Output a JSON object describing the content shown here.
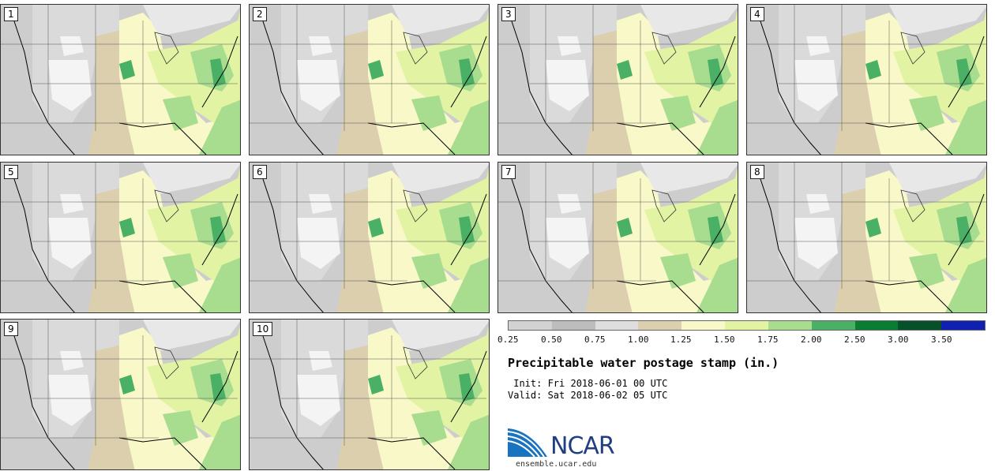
{
  "panels": [
    "1",
    "2",
    "3",
    "4",
    "5",
    "6",
    "7",
    "8",
    "9",
    "10"
  ],
  "colorbar": {
    "colors": [
      "#d2d2d2",
      "#bdbdbd",
      "#dedede",
      "#dccfae",
      "#f8f8c8",
      "#e2f3a4",
      "#a8dc8e",
      "#4ab065",
      "#0a7d32",
      "#06502a",
      "#1020b0"
    ],
    "ticks": [
      "0.25",
      "0.50",
      "0.75",
      "1.00",
      "1.25",
      "1.50",
      "1.75",
      "2.00",
      "2.50",
      "3.00",
      "3.50"
    ]
  },
  "title": "Precipitable water postage stamp (in.)",
  "init": " Init: Fri 2018-06-01 00 UTC",
  "valid": "Valid: Sat 2018-06-02 05 UTC",
  "logo": {
    "text": "NCAR",
    "url": "ensemble.ucar.edu"
  }
}
